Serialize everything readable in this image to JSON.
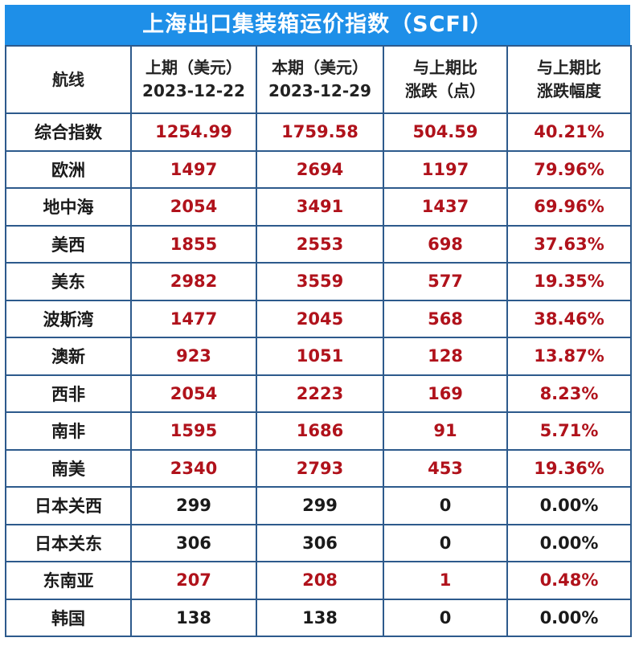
{
  "title": "上海出口集装箱运价指数（SCFI）",
  "colors": {
    "header_bg": "#1e8fe8",
    "border": "#2d5a8c",
    "up": "#b0121b",
    "flat": "#1a1a1a"
  },
  "chart_data": {
    "type": "table",
    "columns": [
      {
        "line1": "航线",
        "line2": ""
      },
      {
        "line1": "上期（美元）",
        "line2": "2023-12-22"
      },
      {
        "line1": "本期（美元）",
        "line2": "2023-12-29"
      },
      {
        "line1": "与上期比",
        "line2": "涨跌（点）"
      },
      {
        "line1": "与上期比",
        "line2": "涨跌幅度"
      }
    ],
    "rows": [
      {
        "route": "综合指数",
        "prev": "1254.99",
        "curr": "1759.58",
        "change": "504.59",
        "pct": "40.21%",
        "trend": "up"
      },
      {
        "route": "欧洲",
        "prev": "1497",
        "curr": "2694",
        "change": "1197",
        "pct": "79.96%",
        "trend": "up"
      },
      {
        "route": "地中海",
        "prev": "2054",
        "curr": "3491",
        "change": "1437",
        "pct": "69.96%",
        "trend": "up"
      },
      {
        "route": "美西",
        "prev": "1855",
        "curr": "2553",
        "change": "698",
        "pct": "37.63%",
        "trend": "up"
      },
      {
        "route": "美东",
        "prev": "2982",
        "curr": "3559",
        "change": "577",
        "pct": "19.35%",
        "trend": "up"
      },
      {
        "route": "波斯湾",
        "prev": "1477",
        "curr": "2045",
        "change": "568",
        "pct": "38.46%",
        "trend": "up"
      },
      {
        "route": "澳新",
        "prev": "923",
        "curr": "1051",
        "change": "128",
        "pct": "13.87%",
        "trend": "up"
      },
      {
        "route": "西非",
        "prev": "2054",
        "curr": "2223",
        "change": "169",
        "pct": "8.23%",
        "trend": "up"
      },
      {
        "route": "南非",
        "prev": "1595",
        "curr": "1686",
        "change": "91",
        "pct": "5.71%",
        "trend": "up"
      },
      {
        "route": "南美",
        "prev": "2340",
        "curr": "2793",
        "change": "453",
        "pct": "19.36%",
        "trend": "up"
      },
      {
        "route": "日本关西",
        "prev": "299",
        "curr": "299",
        "change": "0",
        "pct": "0.00%",
        "trend": "flat"
      },
      {
        "route": "日本关东",
        "prev": "306",
        "curr": "306",
        "change": "0",
        "pct": "0.00%",
        "trend": "flat"
      },
      {
        "route": "东南亚",
        "prev": "207",
        "curr": "208",
        "change": "1",
        "pct": "0.48%",
        "trend": "up"
      },
      {
        "route": "韩国",
        "prev": "138",
        "curr": "138",
        "change": "0",
        "pct": "0.00%",
        "trend": "flat"
      }
    ]
  }
}
